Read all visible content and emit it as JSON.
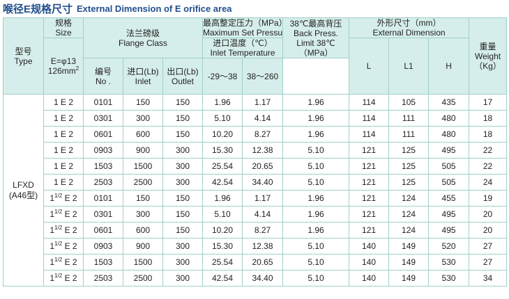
{
  "title": {
    "cn": "喉径E规格尺寸",
    "en": "External Dimension of E orifice area"
  },
  "headers": {
    "type": [
      "型号",
      "Type"
    ],
    "size": [
      "规格",
      "Size"
    ],
    "size_area_line1": "E=φ13",
    "size_area_line2": "126mm",
    "size_area_sup": "2",
    "flange": [
      "法兰磅级",
      "Flange  Class"
    ],
    "no": [
      "编号",
      "No ."
    ],
    "inlet": [
      "进口(Lb)",
      "Inlet"
    ],
    "outlet": [
      "出口(Lb)",
      "Outlet"
    ],
    "max_set": [
      "最高整定压力（MPa）",
      "Maximum Set Pressure"
    ],
    "inlet_temp": [
      "进口温度（℃）",
      "Inlet Temperature"
    ],
    "temp1": "-29～38",
    "temp2": "38～260",
    "back_press": [
      "38℃最高背压",
      "Back Press.",
      "Limit 38℃",
      "（MPa）"
    ],
    "ext_dim": [
      "外形尺寸（mm）",
      "External Dimension"
    ],
    "L": "L",
    "L1": "L1",
    "H": "H",
    "weight": [
      "重量",
      "Weight",
      "（Kg）"
    ]
  },
  "type_value": [
    "LFXD",
    "(A46型)"
  ],
  "rows": [
    {
      "size_pre": "1",
      "size_frac": "",
      "size_post": "E 2",
      "no": "0101",
      "inlet": "150",
      "outlet": "150",
      "p1": "1.96",
      "p2": "1.17",
      "back": "1.96",
      "L": "114",
      "L1": "105",
      "H": "435",
      "w": "17"
    },
    {
      "size_pre": "1",
      "size_frac": "",
      "size_post": "E 2",
      "no": "0301",
      "inlet": "300",
      "outlet": "150",
      "p1": "5.10",
      "p2": "4.14",
      "back": "1.96",
      "L": "114",
      "L1": "111",
      "H": "480",
      "w": "18"
    },
    {
      "size_pre": "1",
      "size_frac": "",
      "size_post": "E 2",
      "no": "0601",
      "inlet": "600",
      "outlet": "150",
      "p1": "10.20",
      "p2": "8.27",
      "back": "1.96",
      "L": "114",
      "L1": "111",
      "H": "480",
      "w": "18"
    },
    {
      "size_pre": "1",
      "size_frac": "",
      "size_post": "E 2",
      "no": "0903",
      "inlet": "900",
      "outlet": "300",
      "p1": "15.30",
      "p2": "12.38",
      "back": "5.10",
      "L": "121",
      "L1": "125",
      "H": "495",
      "w": "22"
    },
    {
      "size_pre": "1",
      "size_frac": "",
      "size_post": "E 2",
      "no": "1503",
      "inlet": "1500",
      "outlet": "300",
      "p1": "25.54",
      "p2": "20.65",
      "back": "5.10",
      "L": "121",
      "L1": "125",
      "H": "505",
      "w": "22"
    },
    {
      "size_pre": "1",
      "size_frac": "",
      "size_post": "E 2",
      "no": "2503",
      "inlet": "2500",
      "outlet": "300",
      "p1": "42.54",
      "p2": "34.40",
      "back": "5.10",
      "L": "121",
      "L1": "125",
      "H": "505",
      "w": "24"
    },
    {
      "size_pre": "1",
      "size_frac": "1/2",
      "size_post": "E 2",
      "no": "0101",
      "inlet": "150",
      "outlet": "150",
      "p1": "1.96",
      "p2": "1.17",
      "back": "1.96",
      "L": "121",
      "L1": "124",
      "H": "455",
      "w": "19"
    },
    {
      "size_pre": "1",
      "size_frac": "1/2",
      "size_post": "E 2",
      "no": "0301",
      "inlet": "300",
      "outlet": "150",
      "p1": "5.10",
      "p2": "4.14",
      "back": "1.96",
      "L": "121",
      "L1": "124",
      "H": "495",
      "w": "20"
    },
    {
      "size_pre": "1",
      "size_frac": "1/2",
      "size_post": "E 2",
      "no": "0601",
      "inlet": "600",
      "outlet": "150",
      "p1": "10.20",
      "p2": "8.27",
      "back": "1.96",
      "L": "121",
      "L1": "124",
      "H": "495",
      "w": "20"
    },
    {
      "size_pre": "1",
      "size_frac": "1/2",
      "size_post": "E 2",
      "no": "0903",
      "inlet": "900",
      "outlet": "300",
      "p1": "15.30",
      "p2": "12.38",
      "back": "5.10",
      "L": "140",
      "L1": "149",
      "H": "520",
      "w": "27"
    },
    {
      "size_pre": "1",
      "size_frac": "1/2",
      "size_post": "E 2",
      "no": "1503",
      "inlet": "1500",
      "outlet": "300",
      "p1": "25.54",
      "p2": "20.65",
      "back": "5.10",
      "L": "140",
      "L1": "149",
      "H": "530",
      "w": "27"
    },
    {
      "size_pre": "1",
      "size_frac": "1/2",
      "size_post": "E 2",
      "no": "2503",
      "inlet": "2500",
      "outlet": "300",
      "p1": "42.54",
      "p2": "34.40",
      "back": "5.10",
      "L": "140",
      "L1": "149",
      "H": "530",
      "w": "34"
    }
  ]
}
